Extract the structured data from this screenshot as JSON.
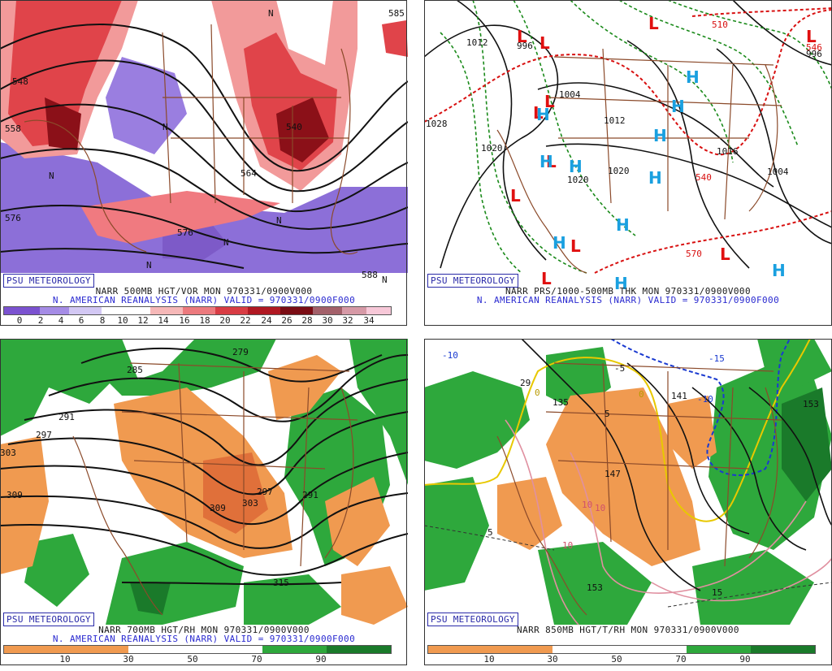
{
  "watermark": "PSU METEOROLOGY",
  "panels": [
    {
      "id": "p500",
      "caption1": "NARR 500MB HGT/VOR MON 970331/0900V000",
      "caption2": "N. AMERICAN REANALYSIS (NARR) VALID = 970331/0900F000",
      "colorbar_ticks": [
        "0",
        "2",
        "4",
        "6",
        "8",
        "10",
        "12",
        "14",
        "16",
        "18",
        "20",
        "22",
        "24",
        "26",
        "28",
        "30",
        "32",
        "34"
      ],
      "contour_labels": [
        "548",
        "558",
        "564",
        "540",
        "576",
        "576",
        "588",
        "585"
      ],
      "letter_labels": [
        "N",
        "N",
        "N",
        "N",
        "N",
        "N",
        "N"
      ],
      "colors": {
        "vort_neg": "#8c6fd8",
        "vort_low": "#f29a9a",
        "vort_mid": "#e0444a",
        "vort_high": "#8b1018"
      }
    },
    {
      "id": "prs",
      "caption1": "NARR PRS/1000-500MB THK MON 970331/0900V000",
      "caption2": "N. AMERICAN REANALYSIS (NARR) VALID = 970331/0900F000",
      "isobar_labels": [
        "1012",
        "996",
        "1004",
        "1012",
        "1020",
        "1020",
        "1004",
        "1028",
        "1016",
        "1020",
        "996"
      ],
      "thickness_labels": [
        "510",
        "540",
        "570",
        "546"
      ],
      "low_symbol": "L",
      "high_symbol": "H",
      "colors": {
        "low": "#e01010",
        "high": "#1aa0e0",
        "thick_cold": "#1a8a1a",
        "thick_warm": "#d81010"
      }
    },
    {
      "id": "p700",
      "caption1": "NARR 700MB HGT/RH MON 970331/0900V000",
      "caption2": "N. AMERICAN REANALYSIS (NARR) VALID = 970331/0900F000",
      "colorbar_ticks": [
        "10",
        "30",
        "50",
        "70",
        "90"
      ],
      "contour_labels": [
        "279",
        "285",
        "291",
        "297",
        "303",
        "309",
        "309",
        "303",
        "297",
        "291",
        "315"
      ],
      "colors": {
        "dry": "#f09a50",
        "moist": "#2ea83c",
        "vmoist": "#1a7a2a"
      }
    },
    {
      "id": "p850",
      "caption1": "NARR 850MB HGT/T/RH MON 970331/0900V000",
      "caption2": "N. AMERICAN REANALYSIS (NARR) VALID = 970331/0900F000",
      "colorbar_ticks": [
        "10",
        "30",
        "50",
        "70",
        "90"
      ],
      "contour_labels": [
        "135",
        "141",
        "147",
        "153",
        "153",
        "29"
      ],
      "temp_labels": [
        "-10",
        "-15",
        "-10",
        "-5",
        "5",
        "5",
        "10",
        "10",
        "10",
        "15",
        "0",
        "0"
      ],
      "colors": {
        "dry": "#f09a50",
        "moist": "#2ea83c",
        "freeze": "#e8c800",
        "cold": "#1a3ad0",
        "warm": "#e090a0"
      }
    }
  ]
}
